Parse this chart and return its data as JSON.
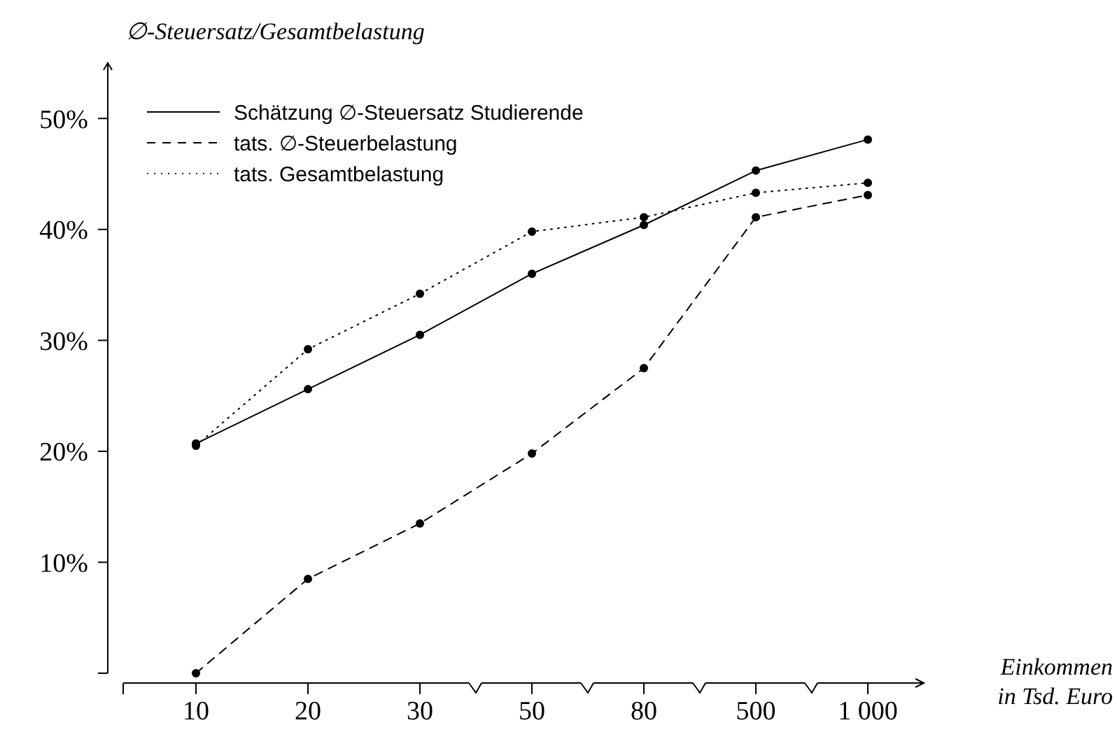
{
  "chart_data": {
    "type": "line",
    "ylabel": "∅-Steuersatz/Gesamtbelastung",
    "xlabel": "Einkommen\nin Tsd. Euro",
    "categories": [
      "10",
      "20",
      "30",
      "50",
      "80",
      "500",
      "1 000"
    ],
    "series": [
      {
        "name": "Schätzung ∅-Steuersatz Studierende",
        "color": "#000000",
        "line_style": "solid",
        "values": [
          20.7,
          25.6,
          30.5,
          36.0,
          40.4,
          45.3,
          48.1
        ]
      },
      {
        "name": "tats. ∅-Steuerbelastung",
        "color": "#000000",
        "line_style": "dashed",
        "values": [
          0,
          8.5,
          13.5,
          19.8,
          27.5,
          41.1,
          43.1
        ]
      },
      {
        "name": "tats. Gesamtbelastung",
        "color": "#000000",
        "line_style": "dotted",
        "values": [
          20.5,
          29.2,
          34.2,
          39.8,
          41.1,
          43.3,
          44.2
        ]
      }
    ],
    "ylim": [
      0,
      55
    ],
    "yticks": [
      {
        "value": 10,
        "label": "10%"
      },
      {
        "value": 20,
        "label": "20%"
      },
      {
        "value": 30,
        "label": "30%"
      },
      {
        "value": 40,
        "label": "40%"
      },
      {
        "value": 50,
        "label": "50%"
      }
    ],
    "marker": "circle",
    "legend": "top left",
    "grid": false
  }
}
